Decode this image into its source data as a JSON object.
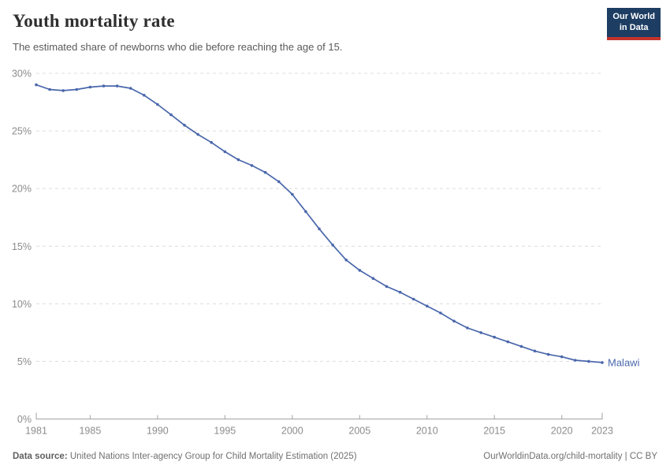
{
  "header": {
    "title": "Youth mortality rate",
    "subtitle": "The estimated share of newborns who die before reaching the age of 15."
  },
  "logo": {
    "line1": "Our World",
    "line2": "in Data",
    "bg_color": "#1d3d63",
    "accent_color": "#c5332d"
  },
  "chart_data": {
    "type": "line",
    "title": "Youth mortality rate",
    "x": [
      1981,
      1982,
      1983,
      1984,
      1985,
      1986,
      1987,
      1988,
      1989,
      1990,
      1991,
      1992,
      1993,
      1994,
      1995,
      1996,
      1997,
      1998,
      1999,
      2000,
      2001,
      2002,
      2003,
      2004,
      2005,
      2006,
      2007,
      2008,
      2009,
      2010,
      2011,
      2012,
      2013,
      2014,
      2015,
      2016,
      2017,
      2018,
      2019,
      2020,
      2021,
      2022,
      2023
    ],
    "series": [
      {
        "name": "Malawi",
        "color": "#4a67ab",
        "values": [
          29.0,
          28.6,
          28.5,
          28.6,
          28.8,
          28.9,
          28.9,
          28.7,
          28.1,
          27.3,
          26.4,
          25.5,
          24.7,
          24.0,
          23.2,
          22.5,
          22.0,
          21.4,
          20.6,
          19.5,
          18.0,
          16.5,
          15.1,
          13.8,
          12.9,
          12.2,
          11.5,
          11.0,
          10.4,
          9.8,
          9.2,
          8.5,
          7.9,
          7.5,
          7.1,
          6.7,
          6.3,
          5.9,
          5.6,
          5.4,
          5.1,
          5.0,
          4.9
        ]
      }
    ],
    "xlim": [
      1981,
      2023
    ],
    "ylim": [
      0,
      30
    ],
    "x_ticks": [
      1981,
      1985,
      1990,
      1995,
      2000,
      2005,
      2010,
      2015,
      2020,
      2023
    ],
    "y_ticks": [
      0,
      5,
      10,
      15,
      20,
      25,
      30
    ],
    "y_tick_suffix": "%",
    "grid": "horizontal-dashed",
    "legend_position": "end-of-line-label"
  },
  "footer": {
    "datasource_label": "Data source:",
    "datasource_text": " United Nations Inter-agency Group for Child Mortality Estimation (2025)",
    "link_text": "OurWorldinData.org/child-mortality | CC BY"
  }
}
